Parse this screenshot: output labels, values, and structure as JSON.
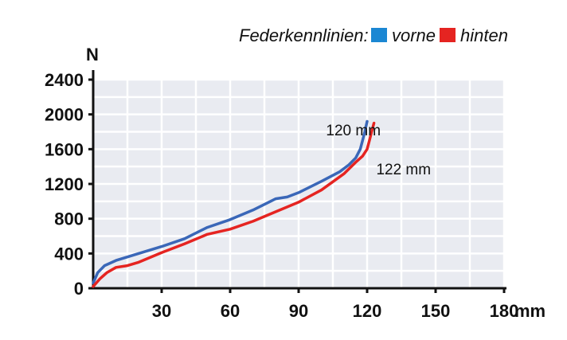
{
  "legend": {
    "title": "Federkennlinien:",
    "items": [
      {
        "label": "vorne",
        "color": "#1b87d3"
      },
      {
        "label": "hinten",
        "color": "#e52421"
      }
    ]
  },
  "chart_data": {
    "type": "line",
    "xlabel": "mm",
    "ylabel": "N",
    "xlim": [
      0,
      180
    ],
    "ylim": [
      0,
      2400
    ],
    "xticks": [
      30,
      60,
      90,
      120,
      150,
      180
    ],
    "xtick_labels": [
      "30",
      "60",
      "90",
      "120",
      "150",
      "180"
    ],
    "yticks": [
      0,
      400,
      800,
      1200,
      1600,
      2000,
      2400
    ],
    "ytick_labels": [
      "0",
      "400",
      "800",
      "1200",
      "1600",
      "2000",
      "2400"
    ],
    "grid": true,
    "legend_position": "top-right",
    "series": [
      {
        "name": "vorne",
        "color": "#3a67b8",
        "x": [
          0,
          2,
          5,
          10,
          15,
          20,
          30,
          40,
          50,
          60,
          70,
          80,
          85,
          90,
          100,
          108,
          112,
          115,
          117,
          118,
          119,
          120
        ],
        "y": [
          60,
          180,
          260,
          320,
          360,
          400,
          480,
          570,
          700,
          790,
          900,
          1030,
          1050,
          1100,
          1230,
          1340,
          1420,
          1500,
          1600,
          1700,
          1800,
          1920
        ]
      },
      {
        "name": "hinten",
        "color": "#e52421",
        "x": [
          0,
          3,
          6,
          10,
          15,
          20,
          30,
          40,
          50,
          60,
          70,
          80,
          90,
          100,
          110,
          115,
          118,
          120,
          121,
          122,
          123
        ],
        "y": [
          20,
          110,
          180,
          240,
          260,
          300,
          410,
          510,
          620,
          680,
          770,
          880,
          990,
          1130,
          1320,
          1450,
          1520,
          1600,
          1700,
          1800,
          1900
        ]
      }
    ],
    "annotations": [
      {
        "text": "120 mm",
        "x": 102,
        "y": 1760
      },
      {
        "text": "122 mm",
        "x": 124,
        "y": 1310
      }
    ]
  }
}
